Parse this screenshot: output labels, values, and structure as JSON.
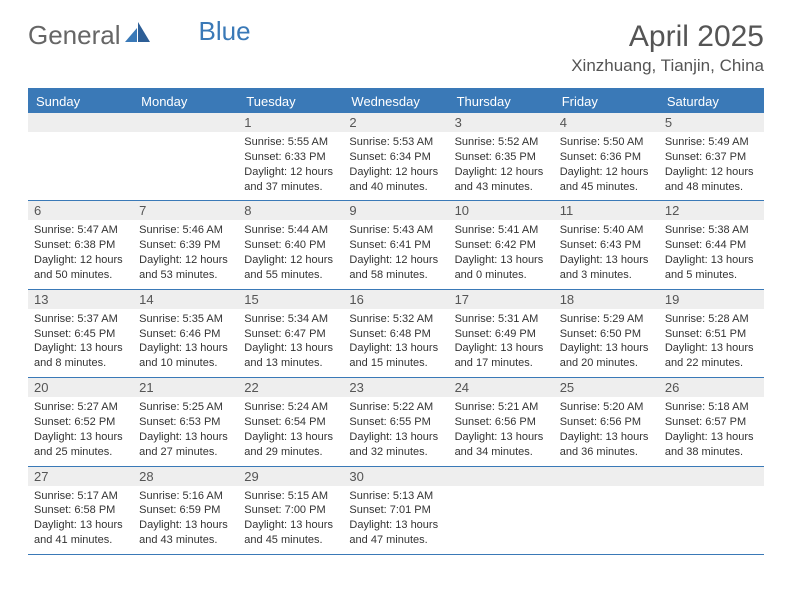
{
  "logo": {
    "text1": "General",
    "text2": "Blue"
  },
  "title": "April 2025",
  "location": "Xinzhuang, Tianjin, China",
  "colors": {
    "accent": "#3a79b7",
    "header_bg": "#3a79b7",
    "header_text": "#ffffff",
    "daynum_bg": "#eeeeee",
    "text": "#333333",
    "background": "#ffffff"
  },
  "weekdays": [
    "Sunday",
    "Monday",
    "Tuesday",
    "Wednesday",
    "Thursday",
    "Friday",
    "Saturday"
  ],
  "weeks": [
    [
      {
        "n": "",
        "sunrise": "",
        "sunset": "",
        "daylight": ""
      },
      {
        "n": "",
        "sunrise": "",
        "sunset": "",
        "daylight": ""
      },
      {
        "n": "1",
        "sunrise": "Sunrise: 5:55 AM",
        "sunset": "Sunset: 6:33 PM",
        "daylight": "Daylight: 12 hours and 37 minutes."
      },
      {
        "n": "2",
        "sunrise": "Sunrise: 5:53 AM",
        "sunset": "Sunset: 6:34 PM",
        "daylight": "Daylight: 12 hours and 40 minutes."
      },
      {
        "n": "3",
        "sunrise": "Sunrise: 5:52 AM",
        "sunset": "Sunset: 6:35 PM",
        "daylight": "Daylight: 12 hours and 43 minutes."
      },
      {
        "n": "4",
        "sunrise": "Sunrise: 5:50 AM",
        "sunset": "Sunset: 6:36 PM",
        "daylight": "Daylight: 12 hours and 45 minutes."
      },
      {
        "n": "5",
        "sunrise": "Sunrise: 5:49 AM",
        "sunset": "Sunset: 6:37 PM",
        "daylight": "Daylight: 12 hours and 48 minutes."
      }
    ],
    [
      {
        "n": "6",
        "sunrise": "Sunrise: 5:47 AM",
        "sunset": "Sunset: 6:38 PM",
        "daylight": "Daylight: 12 hours and 50 minutes."
      },
      {
        "n": "7",
        "sunrise": "Sunrise: 5:46 AM",
        "sunset": "Sunset: 6:39 PM",
        "daylight": "Daylight: 12 hours and 53 minutes."
      },
      {
        "n": "8",
        "sunrise": "Sunrise: 5:44 AM",
        "sunset": "Sunset: 6:40 PM",
        "daylight": "Daylight: 12 hours and 55 minutes."
      },
      {
        "n": "9",
        "sunrise": "Sunrise: 5:43 AM",
        "sunset": "Sunset: 6:41 PM",
        "daylight": "Daylight: 12 hours and 58 minutes."
      },
      {
        "n": "10",
        "sunrise": "Sunrise: 5:41 AM",
        "sunset": "Sunset: 6:42 PM",
        "daylight": "Daylight: 13 hours and 0 minutes."
      },
      {
        "n": "11",
        "sunrise": "Sunrise: 5:40 AM",
        "sunset": "Sunset: 6:43 PM",
        "daylight": "Daylight: 13 hours and 3 minutes."
      },
      {
        "n": "12",
        "sunrise": "Sunrise: 5:38 AM",
        "sunset": "Sunset: 6:44 PM",
        "daylight": "Daylight: 13 hours and 5 minutes."
      }
    ],
    [
      {
        "n": "13",
        "sunrise": "Sunrise: 5:37 AM",
        "sunset": "Sunset: 6:45 PM",
        "daylight": "Daylight: 13 hours and 8 minutes."
      },
      {
        "n": "14",
        "sunrise": "Sunrise: 5:35 AM",
        "sunset": "Sunset: 6:46 PM",
        "daylight": "Daylight: 13 hours and 10 minutes."
      },
      {
        "n": "15",
        "sunrise": "Sunrise: 5:34 AM",
        "sunset": "Sunset: 6:47 PM",
        "daylight": "Daylight: 13 hours and 13 minutes."
      },
      {
        "n": "16",
        "sunrise": "Sunrise: 5:32 AM",
        "sunset": "Sunset: 6:48 PM",
        "daylight": "Daylight: 13 hours and 15 minutes."
      },
      {
        "n": "17",
        "sunrise": "Sunrise: 5:31 AM",
        "sunset": "Sunset: 6:49 PM",
        "daylight": "Daylight: 13 hours and 17 minutes."
      },
      {
        "n": "18",
        "sunrise": "Sunrise: 5:29 AM",
        "sunset": "Sunset: 6:50 PM",
        "daylight": "Daylight: 13 hours and 20 minutes."
      },
      {
        "n": "19",
        "sunrise": "Sunrise: 5:28 AM",
        "sunset": "Sunset: 6:51 PM",
        "daylight": "Daylight: 13 hours and 22 minutes."
      }
    ],
    [
      {
        "n": "20",
        "sunrise": "Sunrise: 5:27 AM",
        "sunset": "Sunset: 6:52 PM",
        "daylight": "Daylight: 13 hours and 25 minutes."
      },
      {
        "n": "21",
        "sunrise": "Sunrise: 5:25 AM",
        "sunset": "Sunset: 6:53 PM",
        "daylight": "Daylight: 13 hours and 27 minutes."
      },
      {
        "n": "22",
        "sunrise": "Sunrise: 5:24 AM",
        "sunset": "Sunset: 6:54 PM",
        "daylight": "Daylight: 13 hours and 29 minutes."
      },
      {
        "n": "23",
        "sunrise": "Sunrise: 5:22 AM",
        "sunset": "Sunset: 6:55 PM",
        "daylight": "Daylight: 13 hours and 32 minutes."
      },
      {
        "n": "24",
        "sunrise": "Sunrise: 5:21 AM",
        "sunset": "Sunset: 6:56 PM",
        "daylight": "Daylight: 13 hours and 34 minutes."
      },
      {
        "n": "25",
        "sunrise": "Sunrise: 5:20 AM",
        "sunset": "Sunset: 6:56 PM",
        "daylight": "Daylight: 13 hours and 36 minutes."
      },
      {
        "n": "26",
        "sunrise": "Sunrise: 5:18 AM",
        "sunset": "Sunset: 6:57 PM",
        "daylight": "Daylight: 13 hours and 38 minutes."
      }
    ],
    [
      {
        "n": "27",
        "sunrise": "Sunrise: 5:17 AM",
        "sunset": "Sunset: 6:58 PM",
        "daylight": "Daylight: 13 hours and 41 minutes."
      },
      {
        "n": "28",
        "sunrise": "Sunrise: 5:16 AM",
        "sunset": "Sunset: 6:59 PM",
        "daylight": "Daylight: 13 hours and 43 minutes."
      },
      {
        "n": "29",
        "sunrise": "Sunrise: 5:15 AM",
        "sunset": "Sunset: 7:00 PM",
        "daylight": "Daylight: 13 hours and 45 minutes."
      },
      {
        "n": "30",
        "sunrise": "Sunrise: 5:13 AM",
        "sunset": "Sunset: 7:01 PM",
        "daylight": "Daylight: 13 hours and 47 minutes."
      },
      {
        "n": "",
        "sunrise": "",
        "sunset": "",
        "daylight": ""
      },
      {
        "n": "",
        "sunrise": "",
        "sunset": "",
        "daylight": ""
      },
      {
        "n": "",
        "sunrise": "",
        "sunset": "",
        "daylight": ""
      }
    ]
  ]
}
